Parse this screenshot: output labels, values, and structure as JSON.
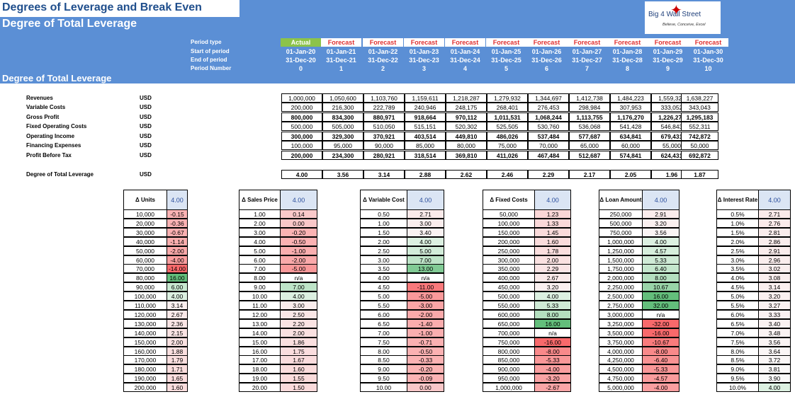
{
  "header": {
    "title": "Degrees of Leverage and Break Even",
    "subtitle": "Degree of Total Leverage",
    "section": "Degree of Total Leverage"
  },
  "logo": {
    "text": "Big 4    Wall Street",
    "tagline": "Believe, Conceive, Excel"
  },
  "colors": {
    "band": "#5b8fd5",
    "actual": "#8cc34a",
    "forecast_text": "#e03030",
    "green": "#63be7b",
    "red": "#f8696b"
  },
  "period_labels": [
    "Period type",
    "Start of period",
    "End of period",
    "Period Number"
  ],
  "periods": {
    "type": [
      "Actual",
      "Forecast",
      "Forecast",
      "Forecast",
      "Forecast",
      "Forecast",
      "Forecast",
      "Forecast",
      "Forecast",
      "Forecast",
      "Forecast"
    ],
    "start": [
      "01-Jan-20",
      "01-Jan-21",
      "01-Jan-22",
      "01-Jan-23",
      "01-Jan-24",
      "01-Jan-25",
      "01-Jan-26",
      "01-Jan-27",
      "01-Jan-28",
      "01-Jan-29",
      "01-Jan-30"
    ],
    "end": [
      "31-Dec-20",
      "31-Dec-21",
      "31-Dec-22",
      "31-Dec-23",
      "31-Dec-24",
      "31-Dec-25",
      "31-Dec-26",
      "31-Dec-27",
      "31-Dec-28",
      "31-Dec-29",
      "31-Dec-30"
    ],
    "number": [
      "0",
      "1",
      "2",
      "3",
      "4",
      "5",
      "6",
      "7",
      "8",
      "9",
      "10"
    ]
  },
  "rows": [
    {
      "label": "Revenues",
      "cur": "USD",
      "bold": false,
      "values": [
        "1,000,000",
        "1,050,600",
        "1,103,760",
        "1,159,611",
        "1,218,287",
        "1,279,932",
        "1,344,697",
        "1,412,738",
        "1,484,223",
        "1,559,325",
        "1,638,227"
      ]
    },
    {
      "label": "Variable Costs",
      "cur": "USD",
      "bold": false,
      "values": [
        "200,000",
        "216,300",
        "222,789",
        "240,946",
        "248,175",
        "268,401",
        "276,453",
        "298,984",
        "307,953",
        "333,052",
        "343,043"
      ]
    },
    {
      "label": "Gross Profit",
      "cur": "USD",
      "bold": true,
      "values": [
        "800,000",
        "834,300",
        "880,971",
        "918,664",
        "970,112",
        "1,011,531",
        "1,068,244",
        "1,113,755",
        "1,176,270",
        "1,226,273",
        "1,295,183"
      ]
    },
    {
      "label": "Fixed Operating Costs",
      "cur": "USD",
      "bold": false,
      "values": [
        "500,000",
        "505,000",
        "510,050",
        "515,151",
        "520,302",
        "525,505",
        "530,760",
        "536,068",
        "541,428",
        "546,843",
        "552,311"
      ]
    },
    {
      "label": "Operating Income",
      "cur": "USD",
      "bold": true,
      "values": [
        "300,000",
        "329,300",
        "370,921",
        "403,514",
        "449,810",
        "486,026",
        "537,484",
        "577,687",
        "634,841",
        "679,431",
        "742,872"
      ]
    },
    {
      "label": "Financing Expenses",
      "cur": "USD",
      "bold": false,
      "values": [
        "100,000",
        "95,000",
        "90,000",
        "85,000",
        "80,000",
        "75,000",
        "70,000",
        "65,000",
        "60,000",
        "55,000",
        "50,000"
      ]
    },
    {
      "label": "Profit Before Tax",
      "cur": "USD",
      "bold": true,
      "values": [
        "200,000",
        "234,300",
        "280,921",
        "318,514",
        "369,810",
        "411,026",
        "467,484",
        "512,687",
        "574,841",
        "624,431",
        "692,872"
      ]
    }
  ],
  "dtl": {
    "label": "Degree of Total Leverage",
    "cur": "USD",
    "values": [
      "4.00",
      "3.56",
      "3.14",
      "2.88",
      "2.62",
      "2.46",
      "2.29",
      "2.17",
      "2.05",
      "1.96",
      "1.87"
    ]
  },
  "sensitivity": [
    {
      "header": "Δ Units",
      "base": "4.00",
      "inputs": [
        "10,000",
        "20,000",
        "30,000",
        "40,000",
        "50,000",
        "60,000",
        "70,000",
        "80,000",
        "90,000",
        "100,000",
        "110,000",
        "120,000",
        "130,000",
        "140,000",
        "150,000",
        "160,000",
        "170,000",
        "180,000",
        "190,000",
        "200,000"
      ],
      "outputs": [
        "-0.15",
        "-0.36",
        "-0.67",
        "-1.14",
        "-2.00",
        "-4.00",
        "-14.00",
        "16.00",
        "6.00",
        "4.00",
        "3.14",
        "2.67",
        "2.36",
        "2.15",
        "2.00",
        "1.88",
        "1.79",
        "1.71",
        "1.65",
        "1.60"
      ]
    },
    {
      "header": "Δ Sales Price",
      "base": "4.00",
      "inputs": [
        "1.00",
        "2.00",
        "3.00",
        "4.00",
        "5.00",
        "6.00",
        "7.00",
        "8.00",
        "9.00",
        "10.00",
        "11.00",
        "12.00",
        "13.00",
        "14.00",
        "15.00",
        "16.00",
        "17.00",
        "18.00",
        "19.00",
        "20.00"
      ],
      "outputs": [
        "0.14",
        "0.00",
        "-0.20",
        "-0.50",
        "-1.00",
        "-2.00",
        "-5.00",
        "n/a",
        "7.00",
        "4.00",
        "3.00",
        "2.50",
        "2.20",
        "2.00",
        "1.86",
        "1.75",
        "1.67",
        "1.60",
        "1.55",
        "1.50"
      ]
    },
    {
      "header": "Δ Variable Cost",
      "base": "4.00",
      "inputs": [
        "0.50",
        "1.00",
        "1.50",
        "2.00",
        "2.50",
        "3.00",
        "3.50",
        "4.00",
        "4.50",
        "5.00",
        "5.50",
        "6.00",
        "6.50",
        "7.00",
        "7.50",
        "8.00",
        "8.50",
        "9.00",
        "9.50",
        "10.00"
      ],
      "outputs": [
        "2.71",
        "3.00",
        "3.40",
        "4.00",
        "5.00",
        "7.00",
        "13.00",
        "n/a",
        "-11.00",
        "-5.00",
        "-3.00",
        "-2.00",
        "-1.40",
        "-1.00",
        "-0.71",
        "-0.50",
        "-0.33",
        "-0.20",
        "-0.09",
        "0.00"
      ]
    },
    {
      "header": "Δ Fixed Costs",
      "base": "4.00",
      "inputs": [
        "50,000",
        "100,000",
        "150,000",
        "200,000",
        "250,000",
        "300,000",
        "350,000",
        "400,000",
        "450,000",
        "500,000",
        "550,000",
        "600,000",
        "650,000",
        "700,000",
        "750,000",
        "800,000",
        "850,000",
        "900,000",
        "950,000",
        "1,000,000"
      ],
      "outputs": [
        "1.23",
        "1.33",
        "1.45",
        "1.60",
        "1.78",
        "2.00",
        "2.29",
        "2.67",
        "3.20",
        "4.00",
        "5.33",
        "8.00",
        "16.00",
        "n/a",
        "-16.00",
        "-8.00",
        "-5.33",
        "-4.00",
        "-3.20",
        "-2.67"
      ]
    },
    {
      "header": "Δ Loan Amount",
      "base": "4.00",
      "inputs": [
        "250,000",
        "500,000",
        "750,000",
        "1,000,000",
        "1,250,000",
        "1,500,000",
        "1,750,000",
        "2,000,000",
        "2,250,000",
        "2,500,000",
        "2,750,000",
        "3,000,000",
        "3,250,000",
        "3,500,000",
        "3,750,000",
        "4,000,000",
        "4,250,000",
        "4,500,000",
        "4,750,000",
        "5,000,000"
      ],
      "outputs": [
        "2.91",
        "3.20",
        "3.56",
        "4.00",
        "4.57",
        "5.33",
        "6.40",
        "8.00",
        "10.67",
        "16.00",
        "32.00",
        "n/a",
        "-32.00",
        "-16.00",
        "-10.67",
        "-8.00",
        "-6.40",
        "-5.33",
        "-4.57",
        "-4.00"
      ]
    },
    {
      "header": "Δ Interest Rate",
      "base": "4.00",
      "inputs": [
        "0.5%",
        "1.0%",
        "1.5%",
        "2.0%",
        "2.5%",
        "3.0%",
        "3.5%",
        "4.0%",
        "4.5%",
        "5.0%",
        "5.5%",
        "6.0%",
        "6.5%",
        "7.0%",
        "7.5%",
        "8.0%",
        "8.5%",
        "9.0%",
        "9.5%",
        "10.0%"
      ],
      "outputs": [
        "2.71",
        "2.76",
        "2.81",
        "2.86",
        "2.91",
        "2.96",
        "3.02",
        "3.08",
        "3.14",
        "3.20",
        "3.27",
        "3.33",
        "3.40",
        "3.48",
        "3.56",
        "3.64",
        "3.72",
        "3.81",
        "3.90",
        "4.00"
      ]
    }
  ]
}
